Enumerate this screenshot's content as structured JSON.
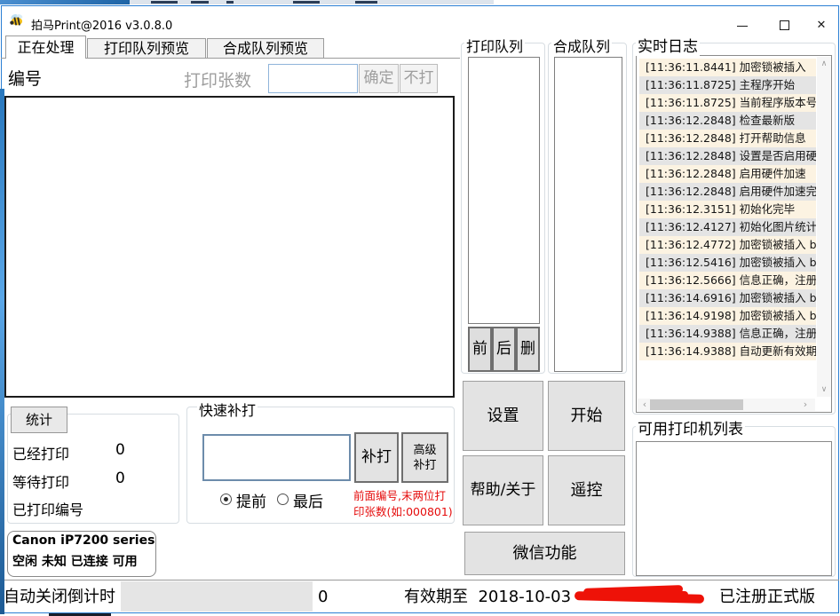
{
  "window": {
    "title": "拍马Print@2016 v3.0.8.0"
  },
  "icons": {
    "close": "✕",
    "scroll_up": "∧",
    "scroll_down": "∨",
    "scroll_left": "‹",
    "scroll_right": "›"
  },
  "tabs": [
    "正在处理",
    "打印队列预览",
    "合成队列预览"
  ],
  "processing": {
    "number_label": "编号",
    "copies_label": "打印张数",
    "copies_value": "",
    "confirm_button": "确定",
    "skip_button": "不打"
  },
  "stats": {
    "title": "统计",
    "printed_label": "已经打印",
    "printed_value": "0",
    "waiting_label": "等待打印",
    "waiting_value": "0",
    "printed_numbers_label": "已打印编号"
  },
  "quick_reprint": {
    "title": "快速补打",
    "input_value": "",
    "reprint_button": "补打",
    "advanced_line1": "高级",
    "advanced_line2": "补打",
    "radio_front": "提前",
    "radio_last": "最后",
    "hint_line1": "前面编号,末两位打",
    "hint_line2": "印张数(如:000801)"
  },
  "printer_status": {
    "name": "Canon iP7200 series",
    "states": "空闲 未知 已连接 可用"
  },
  "queues": {
    "print_title": "打印队列",
    "merge_title": "合成队列",
    "move_front": "前",
    "move_back": "后",
    "delete": "删"
  },
  "actions": {
    "settings": "设置",
    "start": "开始",
    "help": "帮助/关于",
    "remote": "遥控",
    "wechat": "微信功能"
  },
  "log": {
    "title": "实时日志",
    "entries": [
      "[11:36:11.8441] 加密锁被插入",
      "[11:36:11.8725] 主程序开始",
      "[11:36:11.8725] 当前程序版本号",
      "[11:36:12.2848] 检查最新版",
      "[11:36:12.2848] 打开帮助信息",
      "[11:36:12.2848] 设置是否启用硬",
      "[11:36:12.2848] 启用硬件加速",
      "[11:36:12.2848] 启用硬件加速完",
      "[11:36:12.3151] 初始化完毕",
      "[11:36:12.4127] 初始化图片统计",
      "[11:36:12.4772] 加密锁被插入 b",
      "[11:36:12.5416] 加密锁被插入 b",
      "[11:36:12.5666] 信息正确，注册",
      "[11:36:14.6916] 加密锁被插入 b",
      "[11:36:14.9198] 加密锁被插入 b",
      "[11:36:14.9388] 信息正确，注册",
      "[11:36:14.9388] 自动更新有效期"
    ]
  },
  "printer_list": {
    "title": "可用打印机列表"
  },
  "bottom_bar": {
    "countdown_label": "自动关闭倒计时",
    "counter": "0",
    "validity_label": "有效期至",
    "validity_date": "2018-10-03",
    "registration": "已注册正式版"
  },
  "colors": {
    "accent_border": "#2b7fd4",
    "hint_red": "#e50b0b",
    "scribble_red": "#ee1208",
    "log_row_odd": "#fcf3e2",
    "log_row_even": "#e4e4e4"
  }
}
